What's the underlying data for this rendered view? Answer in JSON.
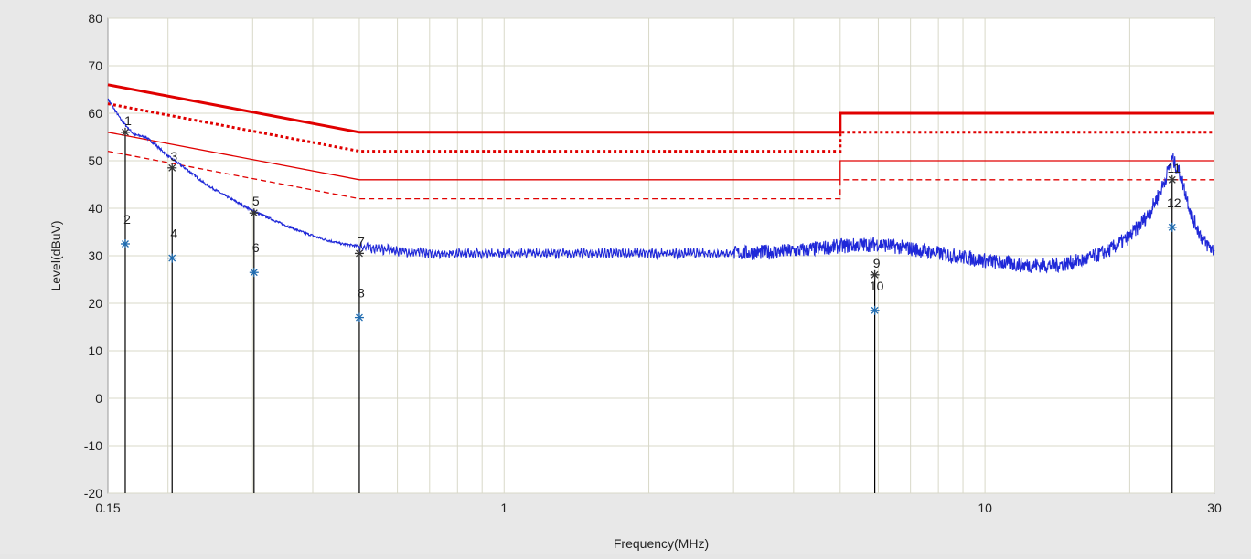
{
  "chart_data": {
    "type": "line",
    "xlabel": "Frequency(MHz)",
    "ylabel": "Level(dBuV)",
    "x_scale": "log",
    "xlim": [
      0.15,
      30
    ],
    "ylim": [
      -20,
      80
    ],
    "x_ticks": [
      {
        "value": 0.15,
        "label": "0.15"
      },
      {
        "value": 1,
        "label": "1"
      },
      {
        "value": 10,
        "label": "10"
      },
      {
        "value": 30,
        "label": "30"
      }
    ],
    "y_ticks": [
      -20,
      -10,
      0,
      10,
      20,
      30,
      40,
      50,
      60,
      70,
      80
    ],
    "grid": true,
    "colors": {
      "limit": "#e00000",
      "trace": "#1f28d8",
      "marker": "#1f6bb0",
      "plot_bg": "#ffffff",
      "frame_bg": "#e8e8e8",
      "grid": "#d8d8c8"
    },
    "limit_lines": [
      {
        "style": "solid-bold",
        "points": [
          [
            0.15,
            66
          ],
          [
            0.5,
            56
          ],
          [
            5,
            56
          ],
          [
            5,
            60
          ],
          [
            30,
            60
          ]
        ]
      },
      {
        "style": "dotted-bold",
        "points": [
          [
            0.15,
            62
          ],
          [
            0.5,
            52
          ],
          [
            5,
            52
          ],
          [
            5,
            56
          ],
          [
            30,
            56
          ]
        ]
      },
      {
        "style": "solid-thin",
        "points": [
          [
            0.15,
            56
          ],
          [
            0.5,
            46
          ],
          [
            5,
            46
          ],
          [
            5,
            50
          ],
          [
            30,
            50
          ]
        ]
      },
      {
        "style": "dashed-thin",
        "points": [
          [
            0.15,
            52
          ],
          [
            0.5,
            42
          ],
          [
            5,
            42
          ],
          [
            5,
            46
          ],
          [
            30,
            46
          ]
        ]
      }
    ],
    "trace": [
      [
        0.15,
        63
      ],
      [
        0.16,
        58.5
      ],
      [
        0.17,
        55.5
      ],
      [
        0.18,
        55
      ],
      [
        0.19,
        53
      ],
      [
        0.2,
        51
      ],
      [
        0.22,
        48
      ],
      [
        0.24,
        45
      ],
      [
        0.27,
        42
      ],
      [
        0.3,
        39.5
      ],
      [
        0.34,
        37
      ],
      [
        0.38,
        35
      ],
      [
        0.42,
        33.5
      ],
      [
        0.46,
        32.5
      ],
      [
        0.5,
        32
      ],
      [
        0.6,
        31
      ],
      [
        0.7,
        30.5
      ],
      [
        0.8,
        30.5
      ],
      [
        1,
        30.5
      ],
      [
        1.5,
        30.5
      ],
      [
        2,
        30.5
      ],
      [
        3,
        30.5
      ],
      [
        4,
        31
      ],
      [
        5,
        32
      ],
      [
        6,
        32.5
      ],
      [
        7,
        31.5
      ],
      [
        8,
        30.5
      ],
      [
        10,
        29
      ],
      [
        12,
        28
      ],
      [
        14,
        28
      ],
      [
        16,
        29
      ],
      [
        18,
        31
      ],
      [
        20,
        34
      ],
      [
        22,
        39
      ],
      [
        23.5,
        45
      ],
      [
        24.5,
        50.5
      ],
      [
        25.5,
        47
      ],
      [
        27,
        38
      ],
      [
        28.5,
        33
      ],
      [
        30,
        31
      ]
    ],
    "markers": [
      {
        "label": "1",
        "x": 0.163,
        "y": 56,
        "symbol": "star-open"
      },
      {
        "label": "2",
        "x": 0.163,
        "y": 32.5,
        "symbol": "star"
      },
      {
        "label": "3",
        "x": 0.204,
        "y": 48.5,
        "symbol": "star-open"
      },
      {
        "label": "4",
        "x": 0.204,
        "y": 29.5,
        "symbol": "star"
      },
      {
        "label": "5",
        "x": 0.302,
        "y": 39,
        "symbol": "star-open"
      },
      {
        "label": "6",
        "x": 0.302,
        "y": 26.5,
        "symbol": "star"
      },
      {
        "label": "7",
        "x": 0.5,
        "y": 30.5,
        "symbol": "star-open"
      },
      {
        "label": "8",
        "x": 0.5,
        "y": 17,
        "symbol": "star"
      },
      {
        "label": "9",
        "x": 5.9,
        "y": 26,
        "symbol": "star-open"
      },
      {
        "label": "10",
        "x": 5.9,
        "y": 18.5,
        "symbol": "star"
      },
      {
        "label": "11",
        "x": 24.5,
        "y": 46,
        "symbol": "star-open"
      },
      {
        "label": "12",
        "x": 24.5,
        "y": 36,
        "symbol": "star"
      }
    ]
  }
}
